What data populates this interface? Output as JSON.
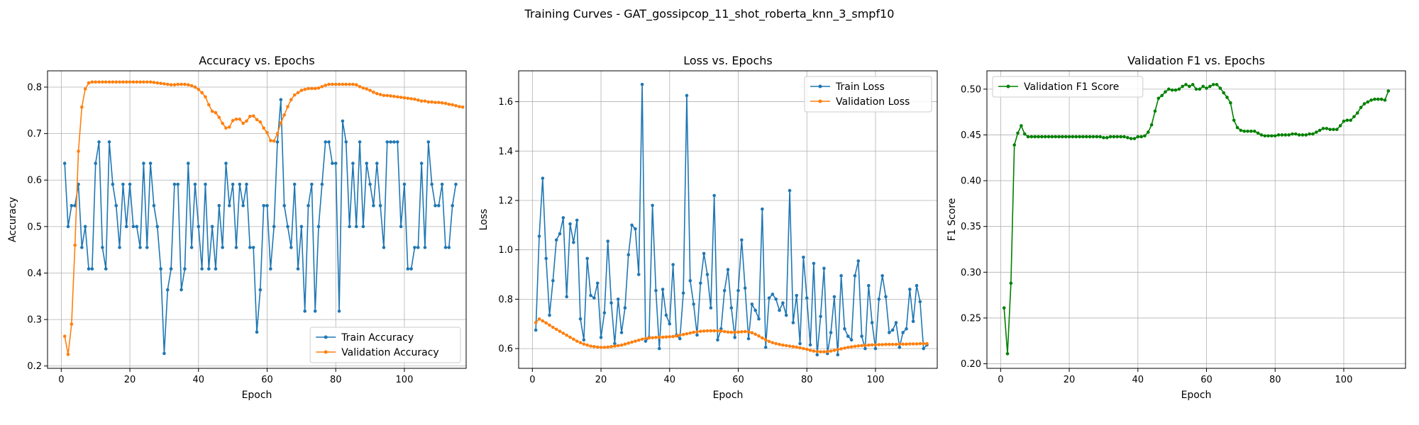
{
  "figure": {
    "suptitle": "Training Curves - GAT_gossipcop_11_shot_roberta_knn_3_smpf10"
  },
  "colors": {
    "train": "#1f77b4",
    "validation": "#ff7f0e",
    "f1": "#008000",
    "grid": "#b0b0b0"
  },
  "chart_data": [
    {
      "type": "line",
      "title": "Accuracy vs. Epochs",
      "xlabel": "Epoch",
      "ylabel": "Accuracy",
      "xlim": [
        -4,
        118
      ],
      "ylim": [
        0.195,
        0.835
      ],
      "xticks": [
        0,
        20,
        40,
        60,
        80,
        100
      ],
      "yticks": [
        0.2,
        0.3,
        0.4,
        0.5,
        0.6,
        0.7,
        0.8
      ],
      "ytick_labels": [
        "0.2",
        "0.3",
        "0.4",
        "0.5",
        "0.6",
        "0.7",
        "0.8"
      ],
      "grid": true,
      "legend_position": "lower-right",
      "series": [
        {
          "name": "Train Accuracy",
          "color": "#1f77b4",
          "x_start": 1,
          "values": [
            0.636,
            0.5,
            0.545,
            0.545,
            0.591,
            0.455,
            0.5,
            0.409,
            0.409,
            0.636,
            0.682,
            0.455,
            0.409,
            0.682,
            0.591,
            0.545,
            0.455,
            0.591,
            0.5,
            0.591,
            0.5,
            0.5,
            0.455,
            0.636,
            0.455,
            0.636,
            0.545,
            0.5,
            0.409,
            0.227,
            0.364,
            0.409,
            0.591,
            0.591,
            0.364,
            0.409,
            0.636,
            0.455,
            0.591,
            0.5,
            0.409,
            0.591,
            0.409,
            0.5,
            0.409,
            0.545,
            0.455,
            0.636,
            0.545,
            0.591,
            0.455,
            0.591,
            0.545,
            0.591,
            0.455,
            0.455,
            0.273,
            0.364,
            0.545,
            0.545,
            0.409,
            0.5,
            0.682,
            0.773,
            0.545,
            0.5,
            0.455,
            0.591,
            0.409,
            0.5,
            0.318,
            0.545,
            0.591,
            0.318,
            0.5,
            0.591,
            0.682,
            0.682,
            0.636,
            0.636,
            0.318,
            0.727,
            0.682,
            0.5,
            0.636,
            0.5,
            0.682,
            0.5,
            0.636,
            0.591,
            0.545,
            0.636,
            0.545,
            0.455,
            0.682,
            0.682,
            0.682,
            0.682,
            0.5,
            0.591,
            0.409,
            0.409,
            0.455,
            0.455,
            0.636,
            0.455,
            0.682,
            0.591,
            0.545,
            0.545,
            0.591,
            0.455,
            0.455,
            0.545,
            0.591
          ]
        },
        {
          "name": "Validation Accuracy",
          "color": "#ff7f0e",
          "x_start": 1,
          "values": [
            0.264,
            0.225,
            0.29,
            0.46,
            0.662,
            0.757,
            0.796,
            0.809,
            0.811,
            0.811,
            0.811,
            0.811,
            0.811,
            0.811,
            0.811,
            0.811,
            0.811,
            0.811,
            0.811,
            0.811,
            0.811,
            0.811,
            0.811,
            0.811,
            0.811,
            0.811,
            0.81,
            0.809,
            0.808,
            0.807,
            0.806,
            0.805,
            0.805,
            0.806,
            0.806,
            0.806,
            0.805,
            0.803,
            0.8,
            0.795,
            0.788,
            0.779,
            0.762,
            0.748,
            0.745,
            0.735,
            0.722,
            0.712,
            0.714,
            0.728,
            0.731,
            0.731,
            0.722,
            0.727,
            0.737,
            0.738,
            0.73,
            0.725,
            0.712,
            0.702,
            0.685,
            0.684,
            0.7,
            0.723,
            0.74,
            0.758,
            0.773,
            0.783,
            0.788,
            0.793,
            0.795,
            0.797,
            0.797,
            0.797,
            0.798,
            0.801,
            0.804,
            0.806,
            0.806,
            0.806,
            0.806,
            0.806,
            0.806,
            0.806,
            0.806,
            0.805,
            0.801,
            0.798,
            0.796,
            0.793,
            0.789,
            0.786,
            0.784,
            0.782,
            0.782,
            0.781,
            0.78,
            0.779,
            0.778,
            0.777,
            0.776,
            0.775,
            0.774,
            0.772,
            0.77,
            0.77,
            0.768,
            0.768,
            0.767,
            0.767,
            0.766,
            0.765,
            0.763,
            0.762,
            0.76,
            0.758,
            0.757
          ]
        }
      ]
    },
    {
      "type": "line",
      "title": "Loss vs. Epochs",
      "xlabel": "Epoch",
      "ylabel": "Loss",
      "xlim": [
        -4,
        118
      ],
      "ylim": [
        0.52,
        1.725
      ],
      "xticks": [
        0,
        20,
        40,
        60,
        80,
        100
      ],
      "yticks": [
        0.6,
        0.8,
        1.0,
        1.2,
        1.4,
        1.6
      ],
      "ytick_labels": [
        "0.6",
        "0.8",
        "1.0",
        "1.2",
        "1.4",
        "1.6"
      ],
      "grid": true,
      "legend_position": "upper-right",
      "series": [
        {
          "name": "Train Loss",
          "color": "#1f77b4",
          "x_start": 1,
          "values": [
            0.675,
            1.055,
            1.29,
            0.965,
            0.735,
            0.875,
            1.04,
            1.065,
            1.13,
            0.81,
            1.105,
            1.03,
            1.12,
            0.72,
            0.635,
            0.965,
            0.815,
            0.805,
            0.865,
            0.645,
            0.745,
            1.035,
            0.785,
            0.62,
            0.8,
            0.665,
            0.765,
            0.98,
            1.1,
            1.085,
            0.9,
            1.67,
            0.63,
            0.645,
            1.18,
            0.835,
            0.6,
            0.84,
            0.735,
            0.7,
            0.94,
            0.655,
            0.64,
            0.825,
            1.625,
            0.875,
            0.78,
            0.655,
            0.865,
            0.985,
            0.9,
            0.765,
            1.22,
            0.635,
            0.68,
            0.835,
            0.92,
            0.765,
            0.645,
            0.835,
            1.04,
            0.845,
            0.64,
            0.78,
            0.755,
            0.72,
            1.165,
            0.605,
            0.805,
            0.82,
            0.8,
            0.755,
            0.785,
            0.735,
            1.24,
            0.705,
            0.815,
            0.62,
            0.97,
            0.805,
            0.615,
            0.945,
            0.575,
            0.73,
            0.925,
            0.58,
            0.665,
            0.81,
            0.575,
            0.895,
            0.68,
            0.65,
            0.635,
            0.895,
            0.955,
            0.65,
            0.6,
            0.855,
            0.705,
            0.6,
            0.8,
            0.895,
            0.81,
            0.665,
            0.675,
            0.705,
            0.605,
            0.665,
            0.68,
            0.84,
            0.71,
            0.855,
            0.79,
            0.6,
            0.615
          ]
        },
        {
          "name": "Validation Loss",
          "color": "#ff7f0e",
          "x_start": 1,
          "values": [
            0.705,
            0.72,
            0.712,
            0.704,
            0.695,
            0.686,
            0.678,
            0.67,
            0.662,
            0.654,
            0.646,
            0.638,
            0.63,
            0.624,
            0.618,
            0.614,
            0.61,
            0.608,
            0.606,
            0.605,
            0.605,
            0.606,
            0.608,
            0.61,
            0.612,
            0.614,
            0.618,
            0.622,
            0.626,
            0.63,
            0.634,
            0.638,
            0.641,
            0.643,
            0.644,
            0.645,
            0.646,
            0.646,
            0.647,
            0.648,
            0.649,
            0.651,
            0.654,
            0.657,
            0.66,
            0.663,
            0.666,
            0.668,
            0.67,
            0.671,
            0.672,
            0.672,
            0.672,
            0.672,
            0.671,
            0.669,
            0.667,
            0.666,
            0.666,
            0.667,
            0.668,
            0.669,
            0.668,
            0.664,
            0.658,
            0.651,
            0.643,
            0.636,
            0.629,
            0.624,
            0.62,
            0.617,
            0.614,
            0.612,
            0.61,
            0.608,
            0.606,
            0.603,
            0.6,
            0.597,
            0.593,
            0.59,
            0.588,
            0.587,
            0.587,
            0.588,
            0.59,
            0.593,
            0.596,
            0.599,
            0.602,
            0.605,
            0.607,
            0.609,
            0.611,
            0.612,
            0.613,
            0.614,
            0.615,
            0.615,
            0.616,
            0.616,
            0.617,
            0.617,
            0.617,
            0.617,
            0.618,
            0.618,
            0.618,
            0.619,
            0.619,
            0.619,
            0.62,
            0.62,
            0.62
          ]
        }
      ]
    },
    {
      "type": "line",
      "title": "Validation F1 vs. Epochs",
      "xlabel": "Epoch",
      "ylabel": "F1 Score",
      "xlim": [
        -4,
        118
      ],
      "ylim": [
        0.195,
        0.52
      ],
      "xticks": [
        0,
        20,
        40,
        60,
        80,
        100
      ],
      "yticks": [
        0.2,
        0.25,
        0.3,
        0.35,
        0.4,
        0.45,
        0.5
      ],
      "ytick_labels": [
        "0.20",
        "0.25",
        "0.30",
        "0.35",
        "0.40",
        "0.45",
        "0.50"
      ],
      "grid": true,
      "legend_position": "upper-left",
      "series": [
        {
          "name": "Validation F1 Score",
          "color": "#008000",
          "x_start": 1,
          "values": [
            0.261,
            0.211,
            0.288,
            0.439,
            0.452,
            0.46,
            0.451,
            0.448,
            0.448,
            0.448,
            0.448,
            0.448,
            0.448,
            0.448,
            0.448,
            0.448,
            0.448,
            0.448,
            0.448,
            0.448,
            0.448,
            0.448,
            0.448,
            0.448,
            0.448,
            0.448,
            0.448,
            0.448,
            0.448,
            0.447,
            0.447,
            0.448,
            0.448,
            0.448,
            0.448,
            0.448,
            0.447,
            0.446,
            0.446,
            0.448,
            0.448,
            0.449,
            0.453,
            0.461,
            0.476,
            0.49,
            0.493,
            0.497,
            0.5,
            0.499,
            0.499,
            0.5,
            0.503,
            0.505,
            0.503,
            0.505,
            0.5,
            0.5,
            0.503,
            0.501,
            0.503,
            0.505,
            0.505,
            0.501,
            0.496,
            0.491,
            0.485,
            0.466,
            0.458,
            0.455,
            0.454,
            0.454,
            0.454,
            0.454,
            0.452,
            0.45,
            0.449,
            0.449,
            0.449,
            0.449,
            0.45,
            0.45,
            0.45,
            0.45,
            0.451,
            0.451,
            0.45,
            0.45,
            0.45,
            0.451,
            0.451,
            0.453,
            0.455,
            0.457,
            0.457,
            0.456,
            0.456,
            0.456,
            0.46,
            0.465,
            0.466,
            0.466,
            0.47,
            0.474,
            0.48,
            0.484,
            0.486,
            0.488,
            0.489,
            0.489,
            0.489,
            0.488,
            0.498
          ]
        }
      ]
    }
  ]
}
